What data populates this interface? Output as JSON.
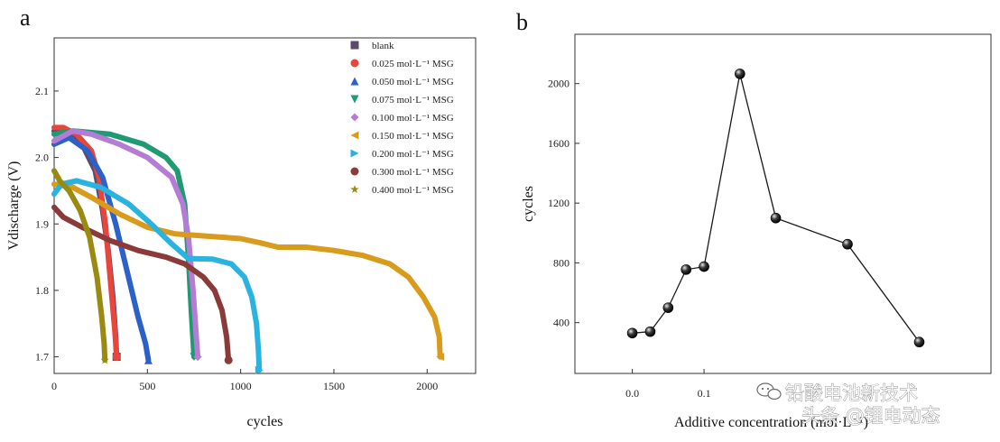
{
  "chart_data": [
    {
      "panel": "a",
      "type": "scatter",
      "xlabel": "cycles",
      "ylabel": "Vdischarge (V)",
      "xlim": [
        0,
        2260
      ],
      "ylim": [
        1.675,
        2.18
      ],
      "xticks": [
        0,
        500,
        1000,
        1500,
        2000
      ],
      "yticks": [
        1.7,
        1.8,
        1.9,
        2.0,
        2.1
      ],
      "legend_position": "top-right",
      "series": [
        {
          "name": "blank",
          "marker": "square",
          "color": "#5a4a6e",
          "points": [
            [
              0,
              2.04
            ],
            [
              60,
              2.04
            ],
            [
              150,
              2.02
            ],
            [
              220,
              1.98
            ],
            [
              260,
              1.92
            ],
            [
              290,
              1.86
            ],
            [
              315,
              1.79
            ],
            [
              330,
              1.73
            ],
            [
              335,
              1.7
            ]
          ]
        },
        {
          "name": "0.025 mol·L⁻¹ MSG",
          "marker": "circle",
          "color": "#e8463a",
          "points": [
            [
              0,
              2.045
            ],
            [
              50,
              2.045
            ],
            [
              120,
              2.035
            ],
            [
              200,
              2.01
            ],
            [
              240,
              1.97
            ],
            [
              275,
              1.9
            ],
            [
              300,
              1.82
            ],
            [
              325,
              1.74
            ],
            [
              335,
              1.7
            ]
          ]
        },
        {
          "name": "0.050 mol·L⁻¹ MSG",
          "marker": "triangle-up",
          "color": "#2c61c8",
          "points": [
            [
              0,
              2.02
            ],
            [
              80,
              2.03
            ],
            [
              180,
              2.01
            ],
            [
              260,
              1.97
            ],
            [
              330,
              1.9
            ],
            [
              390,
              1.83
            ],
            [
              450,
              1.76
            ],
            [
              490,
              1.72
            ],
            [
              505,
              1.695
            ]
          ]
        },
        {
          "name": "0.075 mol·L⁻¹ MSG",
          "marker": "triangle-down",
          "color": "#1f9a72",
          "points": [
            [
              0,
              2.035
            ],
            [
              100,
              2.04
            ],
            [
              300,
              2.035
            ],
            [
              480,
              2.02
            ],
            [
              600,
              2.0
            ],
            [
              660,
              1.98
            ],
            [
              700,
              1.93
            ],
            [
              720,
              1.85
            ],
            [
              735,
              1.77
            ],
            [
              750,
              1.7
            ]
          ]
        },
        {
          "name": "0.100 mol·L⁻¹ MSG",
          "marker": "diamond",
          "color": "#b57cd6",
          "points": [
            [
              0,
              2.025
            ],
            [
              100,
              2.04
            ],
            [
              200,
              2.035
            ],
            [
              350,
              2.02
            ],
            [
              500,
              2.0
            ],
            [
              630,
              1.97
            ],
            [
              690,
              1.93
            ],
            [
              720,
              1.88
            ],
            [
              745,
              1.8
            ],
            [
              760,
              1.74
            ],
            [
              770,
              1.7
            ]
          ]
        },
        {
          "name": "0.150 mol·L⁻¹ MSG",
          "marker": "triangle-left",
          "color": "#d99b1c",
          "points": [
            [
              0,
              1.96
            ],
            [
              100,
              1.955
            ],
            [
              200,
              1.94
            ],
            [
              350,
              1.915
            ],
            [
              500,
              1.895
            ],
            [
              650,
              1.885
            ],
            [
              800,
              1.882
            ],
            [
              1000,
              1.878
            ],
            [
              1100,
              1.872
            ],
            [
              1200,
              1.865
            ],
            [
              1350,
              1.865
            ],
            [
              1500,
              1.86
            ],
            [
              1650,
              1.853
            ],
            [
              1800,
              1.84
            ],
            [
              1900,
              1.82
            ],
            [
              1980,
              1.79
            ],
            [
              2040,
              1.76
            ],
            [
              2065,
              1.73
            ],
            [
              2070,
              1.7
            ]
          ]
        },
        {
          "name": "0.200 mol·L⁻¹ MSG",
          "marker": "triangle-right",
          "color": "#2ab3de",
          "points": [
            [
              0,
              1.945
            ],
            [
              40,
              1.96
            ],
            [
              120,
              1.965
            ],
            [
              250,
              1.955
            ],
            [
              400,
              1.93
            ],
            [
              520,
              1.9
            ],
            [
              630,
              1.87
            ],
            [
              720,
              1.848
            ],
            [
              850,
              1.847
            ],
            [
              950,
              1.84
            ],
            [
              1020,
              1.82
            ],
            [
              1060,
              1.79
            ],
            [
              1085,
              1.75
            ],
            [
              1095,
              1.71
            ],
            [
              1100,
              1.68
            ]
          ]
        },
        {
          "name": "0.300 mol·L⁻¹ MSG",
          "marker": "circle",
          "color": "#8b3a3a",
          "points": [
            [
              0,
              1.925
            ],
            [
              50,
              1.91
            ],
            [
              150,
              1.895
            ],
            [
              300,
              1.875
            ],
            [
              450,
              1.86
            ],
            [
              600,
              1.85
            ],
            [
              700,
              1.84
            ],
            [
              800,
              1.82
            ],
            [
              860,
              1.8
            ],
            [
              900,
              1.77
            ],
            [
              925,
              1.73
            ],
            [
              935,
              1.695
            ]
          ]
        },
        {
          "name": "0.400 mol·L⁻¹ MSG",
          "marker": "star",
          "color": "#9a8a12",
          "points": [
            [
              0,
              1.98
            ],
            [
              30,
              1.965
            ],
            [
              80,
              1.95
            ],
            [
              140,
              1.92
            ],
            [
              190,
              1.88
            ],
            [
              230,
              1.82
            ],
            [
              255,
              1.76
            ],
            [
              268,
              1.72
            ],
            [
              272,
              1.695
            ]
          ]
        }
      ]
    },
    {
      "panel": "b",
      "type": "line",
      "xlabel": "Additive concentration (mol·L⁻¹)",
      "ylabel": "cycles",
      "xlim": [
        -0.08,
        0.5
      ],
      "ylim": [
        60,
        2330
      ],
      "xticks": [
        0.0,
        0.1
      ],
      "xtick_labels": [
        "0.0",
        "0.1"
      ],
      "yticks": [
        400,
        800,
        1200,
        1600,
        2000
      ],
      "x": [
        0.0,
        0.025,
        0.05,
        0.075,
        0.1,
        0.15,
        0.2,
        0.3,
        0.4
      ],
      "values": [
        330,
        340,
        500,
        755,
        775,
        2065,
        1100,
        925,
        270
      ]
    }
  ],
  "figure": {
    "panel_a_letter": "a",
    "panel_b_letter": "b",
    "watermark_line1": "铅酸电池新技术",
    "watermark_line2": "头条 @锂电动态"
  }
}
